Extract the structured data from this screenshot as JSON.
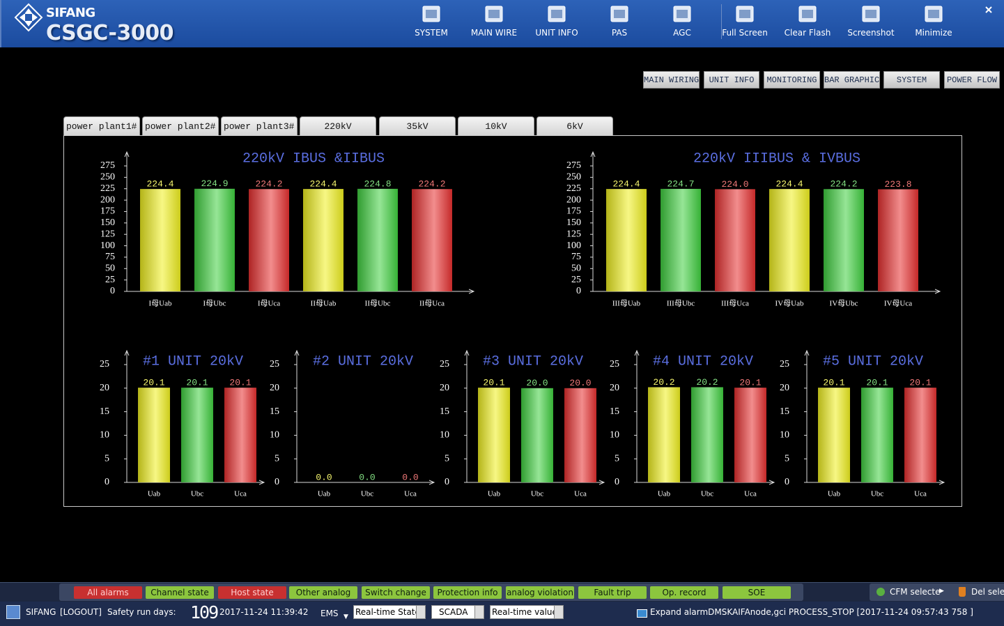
{
  "header": {
    "brand": "SIFANG",
    "product": "CSGC-3000",
    "nav": [
      "SYSTEM",
      "MAIN WIRE",
      "UNIT INFO",
      "PAS",
      "AGC",
      "Full Screen",
      "Clear Flash",
      "Screenshot",
      "Minimize"
    ]
  },
  "view_buttons": [
    "MAIN WIRING",
    "UNIT INFO",
    "MONITORING",
    "BAR GRAPHIC",
    "SYSTEM",
    "POWER FLOW"
  ],
  "tabs": [
    "power plant1#",
    "power plant2#",
    "power plant3#",
    "220kV",
    "35kV",
    "10kV",
    "6kV"
  ],
  "chart_data": [
    {
      "type": "bar",
      "title": "220kV IBUS &IIBUS",
      "categories": [
        "I母Uab",
        "I母Ubc",
        "I母Uca",
        "II母Uab",
        "II母Ubc",
        "II母Uca"
      ],
      "values": [
        224.4,
        224.9,
        224.2,
        224.4,
        224.8,
        224.2
      ],
      "colors": [
        "#f0f020",
        "#40d040",
        "#e83030",
        "#f0f020",
        "#40d040",
        "#e83030"
      ],
      "ylim": [
        0,
        275
      ],
      "yticks": [
        0,
        25,
        50,
        75,
        100,
        125,
        150,
        175,
        200,
        225,
        250,
        275
      ]
    },
    {
      "type": "bar",
      "title": "220kV IIIBUS & IVBUS",
      "categories": [
        "III母Uab",
        "III母Ubc",
        "III母Uca",
        "IV母Uab",
        "IV母Ubc",
        "IV母Uca"
      ],
      "values": [
        224.4,
        224.7,
        224.0,
        224.4,
        224.2,
        223.8
      ],
      "value_labels": [
        "224.4",
        "224.7",
        "224.0",
        "224.4",
        "224.2",
        "223.8"
      ],
      "colors": [
        "#f0f020",
        "#40d040",
        "#e83030",
        "#f0f020",
        "#40d040",
        "#e83030"
      ],
      "ylim": [
        0,
        275
      ],
      "yticks": [
        0,
        25,
        50,
        75,
        100,
        125,
        150,
        175,
        200,
        225,
        250,
        275
      ]
    },
    {
      "type": "bar",
      "title": "#1 UNIT 20kV",
      "categories": [
        "Uab",
        "Ubc",
        "Uca"
      ],
      "values": [
        20.1,
        20.1,
        20.1
      ],
      "colors": [
        "#f0f020",
        "#40d040",
        "#e83030"
      ],
      "ylim": [
        0,
        25
      ],
      "yticks": [
        0,
        5,
        10,
        15,
        20,
        25
      ]
    },
    {
      "type": "bar",
      "title": "#2 UNIT 20kV",
      "categories": [
        "Uab",
        "Ubc",
        "Uca"
      ],
      "values": [
        0,
        0,
        0
      ],
      "value_labels": [
        "0.0",
        "0.0",
        "0.0"
      ],
      "colors": [
        "#f0f020",
        "#40d040",
        "#e83030"
      ],
      "ylim": [
        0,
        25
      ],
      "yticks": [
        0,
        5,
        10,
        15,
        20,
        25
      ]
    },
    {
      "type": "bar",
      "title": "#3 UNIT 20kV",
      "categories": [
        "Uab",
        "Ubc",
        "Uca"
      ],
      "values": [
        20.1,
        20.0,
        20.0
      ],
      "value_labels": [
        "20.1",
        "20.0",
        "20.0"
      ],
      "colors": [
        "#f0f020",
        "#40d040",
        "#e83030"
      ],
      "ylim": [
        0,
        25
      ],
      "yticks": [
        0,
        5,
        10,
        15,
        20,
        25
      ]
    },
    {
      "type": "bar",
      "title": "#4 UNIT 20kV",
      "categories": [
        "Uab",
        "Ubc",
        "Uca"
      ],
      "values": [
        20.2,
        20.2,
        20.1
      ],
      "colors": [
        "#f0f020",
        "#40d040",
        "#e83030"
      ],
      "ylim": [
        0,
        25
      ],
      "yticks": [
        0,
        5,
        10,
        15,
        20,
        25
      ]
    },
    {
      "type": "bar",
      "title": "#5 UNIT 20kV",
      "categories": [
        "Uab",
        "Ubc",
        "Uca"
      ],
      "values": [
        20.1,
        20.1,
        20.1
      ],
      "colors": [
        "#f0f020",
        "#40d040",
        "#e83030"
      ],
      "ylim": [
        0,
        25
      ],
      "yticks": [
        0,
        5,
        10,
        15,
        20,
        25
      ]
    }
  ],
  "alarm_tabs": [
    {
      "label": "All alarms",
      "color": "#c83030"
    },
    {
      "label": "Channel state",
      "color": "#8cc63e"
    },
    {
      "label": "Host state",
      "color": "#c83030"
    },
    {
      "label": "Other analog",
      "color": "#8cc63e"
    },
    {
      "label": "Switch change",
      "color": "#8cc63e"
    },
    {
      "label": "Protection info",
      "color": "#8cc63e"
    },
    {
      "label": "analog violation",
      "color": "#8cc63e"
    },
    {
      "label": "Fault trip",
      "color": "#8cc63e"
    },
    {
      "label": "Op. record",
      "color": "#8cc63e"
    },
    {
      "label": "SOE",
      "color": "#8cc63e"
    }
  ],
  "side_buttons": [
    "CFM selecte",
    "Del sele"
  ],
  "status_bar": {
    "user": "SIFANG",
    "logout": "[LOGOUT]",
    "safety_label": "Safety run days:",
    "safety_days": 109,
    "datetime": "2017-11-24 11:39:42",
    "mode": "EMS",
    "selects": [
      "Real-time State",
      "SCADA",
      "Real-time value"
    ],
    "message": "Expand alarmDMSKAIFAnode,gci PROCESS_STOP [2017-11-24 09:57:43 758 ]"
  }
}
